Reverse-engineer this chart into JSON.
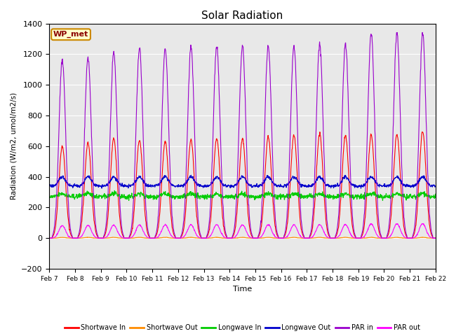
{
  "title": "Solar Radiation",
  "ylabel": "Radiation (W/m2, umol/m2/s)",
  "xlabel": "Time",
  "xlim": [
    0,
    15
  ],
  "ylim": [
    -200,
    1400
  ],
  "yticks": [
    -200,
    0,
    200,
    400,
    600,
    800,
    1000,
    1200,
    1400
  ],
  "n_days": 15,
  "background_color": "#e8e8e8",
  "fig_background": "#ffffff",
  "legend_entries": [
    "Shortwave In",
    "Shortwave Out",
    "Longwave In",
    "Longwave Out",
    "PAR in",
    "PAR out"
  ],
  "legend_colors": [
    "#ff0000",
    "#ff8c00",
    "#00cc00",
    "#0000cc",
    "#9900cc",
    "#ff00ff"
  ],
  "wp_met_label": "WP_met",
  "wp_met_bg": "#ffffcc",
  "wp_met_border": "#cc8800",
  "wp_met_text_color": "#8b0000",
  "day_peaks_sw": [
    600,
    620,
    650,
    640,
    630,
    640,
    650,
    650,
    660,
    670,
    680,
    670,
    670,
    680,
    700
  ],
  "day_peaks_par": [
    1165,
    1180,
    1210,
    1240,
    1240,
    1250,
    1250,
    1255,
    1255,
    1255,
    1270,
    1270,
    1335,
    1335,
    1340
  ],
  "lw_in_base": 270,
  "lw_out_base": 340,
  "pts_per_day": 96
}
